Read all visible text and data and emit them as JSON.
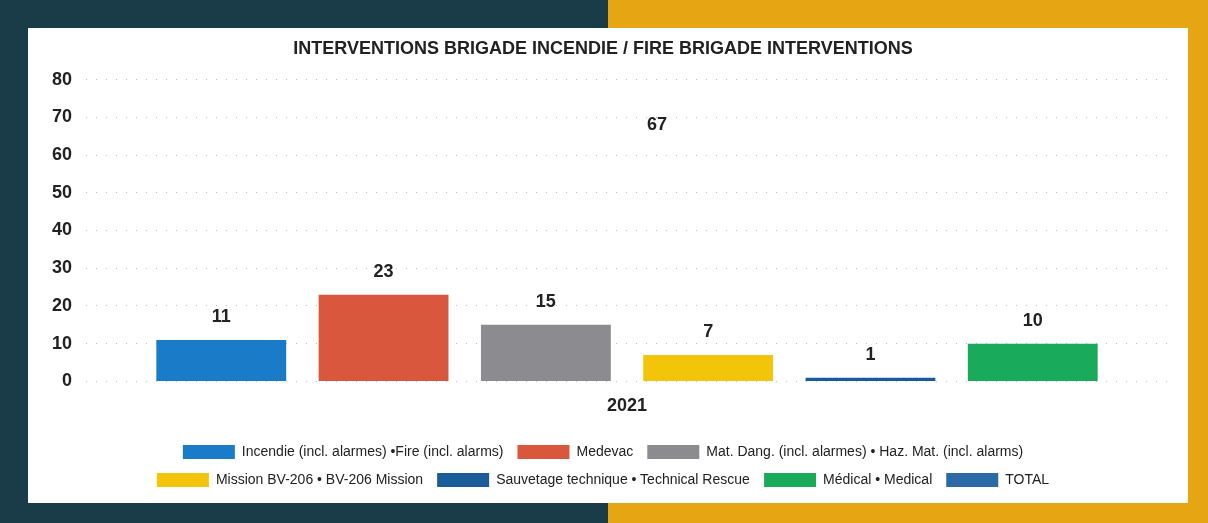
{
  "chart_data": {
    "type": "bar",
    "title": "INTERVENTIONS BRIGADE INCENDIE / FIRE BRIGADE INTERVENTIONS",
    "categories": [
      "2021"
    ],
    "series": [
      {
        "name": "Incendie (incl. alarmes) •Fire (incl. alarms)",
        "color": "#1a7cc8",
        "values": [
          11
        ]
      },
      {
        "name": "Medevac",
        "color": "#d9573c",
        "values": [
          23
        ]
      },
      {
        "name": "Mat. Dang. (incl. alarmes) • Haz. Mat. (incl. alarms)",
        "color": "#8c8c90",
        "values": [
          15
        ]
      },
      {
        "name": "Mission BV-206 • BV-206 Mission",
        "color": "#f2c40a",
        "values": [
          7
        ]
      },
      {
        "name": "Sauvetage technique • Technical Rescue",
        "color": "#1a5b9a",
        "values": [
          1
        ]
      },
      {
        "name": "Médical • Medical",
        "color": "#1aaa5c",
        "values": [
          10
        ]
      },
      {
        "name": "TOTAL",
        "color": "#2a6aa8",
        "values": [
          null
        ]
      }
    ],
    "ylim": [
      0,
      80
    ],
    "yticks": [
      0,
      10,
      20,
      30,
      40,
      50,
      60,
      70,
      80
    ],
    "grid": "y",
    "legend": "bottom",
    "data_labels": true,
    "annotations": [
      "67"
    ]
  }
}
